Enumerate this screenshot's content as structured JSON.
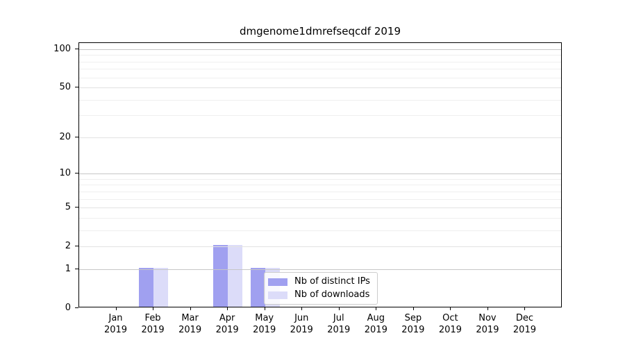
{
  "chart_data": {
    "type": "bar",
    "title": "dmgenome1dmrefseqcdf 2019",
    "year_sublabel": "2019",
    "categories": [
      "Jan",
      "Feb",
      "Mar",
      "Apr",
      "May",
      "Jun",
      "Jul",
      "Aug",
      "Sep",
      "Oct",
      "Nov",
      "Dec"
    ],
    "series": [
      {
        "name": "Nb of distinct IPs",
        "color": "#a0a0f0",
        "values": [
          0,
          1,
          0,
          2,
          1,
          0,
          0,
          0,
          0,
          0,
          0,
          0
        ]
      },
      {
        "name": "Nb of downloads",
        "color": "#dcdcf9",
        "values": [
          0,
          1,
          0,
          2,
          1,
          0,
          0,
          0,
          0,
          0,
          0,
          0
        ]
      }
    ],
    "xlabel": "",
    "ylabel": "",
    "y_axis": {
      "scale": "log1p",
      "major_ticks": [
        0,
        1,
        2,
        5,
        10,
        20,
        50,
        100
      ],
      "minor_gridlines": [
        3,
        4,
        6,
        7,
        8,
        9,
        30,
        40,
        60,
        70,
        80,
        90
      ],
      "ylim": [
        0,
        112
      ]
    },
    "grid": true,
    "legend_position": "lower center",
    "colors": {
      "decade_gridline": "#c6c6c6",
      "labeled_gridline": "#e2e2e2",
      "minor_gridline": "#efefef",
      "axis_frame": "#000000",
      "text": "#000000"
    }
  }
}
